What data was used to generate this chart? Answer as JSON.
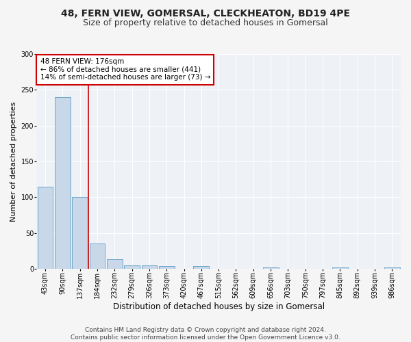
{
  "title1": "48, FERN VIEW, GOMERSAL, CLECKHEATON, BD19 4PE",
  "title2": "Size of property relative to detached houses in Gomersal",
  "xlabel": "Distribution of detached houses by size in Gomersal",
  "ylabel": "Number of detached properties",
  "footer": "Contains HM Land Registry data © Crown copyright and database right 2024.\nContains public sector information licensed under the Open Government Licence v3.0.",
  "bin_labels": [
    "43sqm",
    "90sqm",
    "137sqm",
    "184sqm",
    "232sqm",
    "279sqm",
    "326sqm",
    "373sqm",
    "420sqm",
    "467sqm",
    "515sqm",
    "562sqm",
    "609sqm",
    "656sqm",
    "703sqm",
    "750sqm",
    "797sqm",
    "845sqm",
    "892sqm",
    "939sqm",
    "986sqm"
  ],
  "bar_heights": [
    115,
    240,
    100,
    35,
    13,
    5,
    5,
    4,
    0,
    4,
    0,
    0,
    0,
    2,
    0,
    0,
    0,
    2,
    0,
    0,
    2
  ],
  "bar_color": "#c8d8e8",
  "bar_edge_color": "#5a9ac8",
  "annotation_text": "48 FERN VIEW: 176sqm\n← 86% of detached houses are smaller (441)\n14% of semi-detached houses are larger (73) →",
  "annotation_box_color": "#ffffff",
  "annotation_box_edge_color": "#cc0000",
  "vline_color": "#cc0000",
  "ylim": [
    0,
    300
  ],
  "yticks": [
    0,
    50,
    100,
    150,
    200,
    250,
    300
  ],
  "background_color": "#eef2f7",
  "grid_color": "#ffffff",
  "fig_background": "#f5f5f5",
  "title1_fontsize": 10,
  "title2_fontsize": 9,
  "xlabel_fontsize": 8.5,
  "ylabel_fontsize": 8,
  "tick_fontsize": 7,
  "footer_fontsize": 6.5,
  "annotation_fontsize": 7.5
}
